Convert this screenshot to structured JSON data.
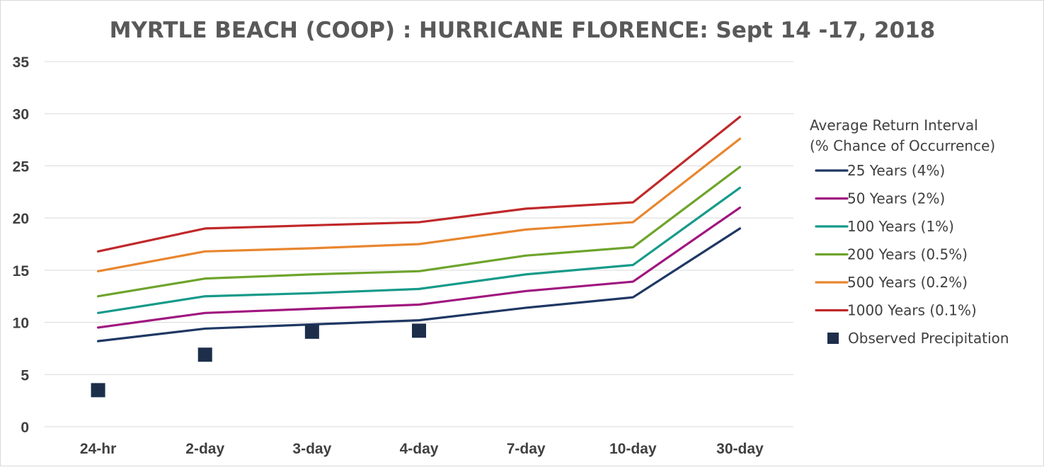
{
  "chart_data": {
    "type": "line",
    "title": "MYRTLE BEACH (COOP) : HURRICANE FLORENCE: Sept 14 -17, 2018",
    "xlabel": "",
    "ylabel": "",
    "categories": [
      "24-hr",
      "2-day",
      "3-day",
      "4-day",
      "7-day",
      "10-day",
      "30-day"
    ],
    "ylim": [
      0,
      35
    ],
    "yticks": [
      "0",
      "5",
      "10",
      "15",
      "20",
      "25",
      "30",
      "35"
    ],
    "grid": true,
    "legend_position": "right",
    "legend_title": [
      "Average Return Interval",
      "(% Chance of Occurrence)"
    ],
    "series": [
      {
        "name": "25 Years (4%)",
        "color": "#1f3864",
        "values": [
          8.2,
          9.4,
          9.8,
          10.2,
          11.4,
          12.4,
          19.0
        ]
      },
      {
        "name": "50 Years (2%)",
        "color": "#a0167f",
        "values": [
          9.5,
          10.9,
          11.3,
          11.7,
          13.0,
          13.9,
          21.0
        ]
      },
      {
        "name": "100 Years (1%)",
        "color": "#169a8a",
        "values": [
          10.9,
          12.5,
          12.8,
          13.2,
          14.6,
          15.5,
          22.9
        ]
      },
      {
        "name": "200 Years (0.5%)",
        "color": "#6ea42c",
        "values": [
          12.5,
          14.2,
          14.6,
          14.9,
          16.4,
          17.2,
          24.9
        ]
      },
      {
        "name": "500 Years (0.2%)",
        "color": "#e8862f",
        "values": [
          14.9,
          16.8,
          17.1,
          17.5,
          18.9,
          19.6,
          27.6
        ]
      },
      {
        "name": "1000 Years (0.1%)",
        "color": "#c0282a",
        "values": [
          16.8,
          19.0,
          19.3,
          19.6,
          20.9,
          21.5,
          29.7
        ]
      }
    ],
    "observed": {
      "name": "Observed Precipitation",
      "color": "#1c2e4a",
      "values": [
        3.5,
        6.9,
        9.1,
        9.2,
        null,
        null,
        null
      ]
    }
  }
}
